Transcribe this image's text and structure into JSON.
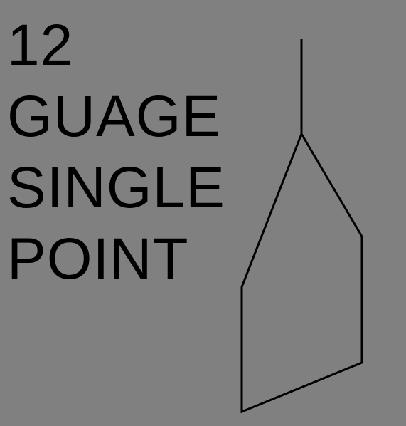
{
  "label": {
    "line_1": "12",
    "line_2": "GUAGE",
    "line_3": "SINGLE",
    "line_4": "POINT"
  },
  "colors": {
    "background": "#808080",
    "foreground": "#000000"
  },
  "icons": {
    "diagram": "single-point-needle-icon"
  }
}
